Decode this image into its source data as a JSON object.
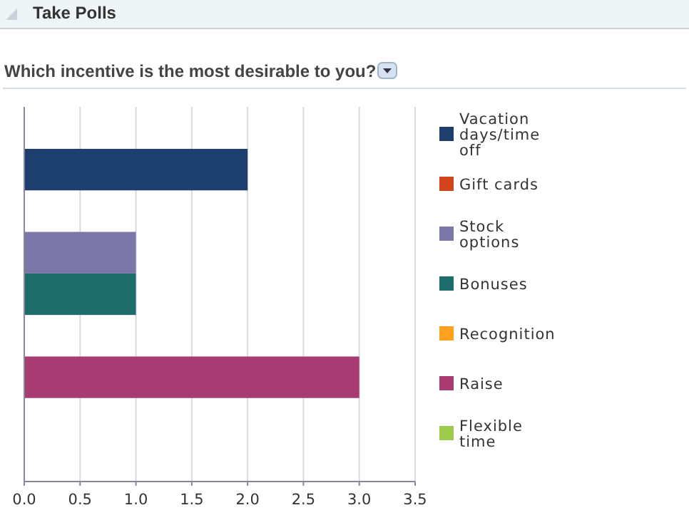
{
  "chart_data": {
    "type": "bar",
    "orientation": "horizontal",
    "title": "Take Polls",
    "subtitle": "Which incentive is the most desirable to you?",
    "categories": [
      null
    ],
    "series": [
      {
        "name": "Vacation days/time off",
        "color": "#1c3f6e",
        "values": [
          2
        ]
      },
      {
        "name": "Gift cards",
        "color": "#d2441c",
        "values": [
          0
        ]
      },
      {
        "name": "Stock options",
        "color": "#7b77a8",
        "values": [
          1
        ]
      },
      {
        "name": "Bonuses",
        "color": "#1d6d6b",
        "values": [
          1
        ]
      },
      {
        "name": "Recognition",
        "color": "#ffa11c",
        "values": [
          0
        ]
      },
      {
        "name": "Raise",
        "color": "#a83c72",
        "values": [
          3
        ]
      },
      {
        "name": "Flexible time",
        "color": "#9ccc4a",
        "values": [
          0
        ]
      }
    ],
    "xlim": [
      0,
      3.5
    ],
    "xticks": [
      {
        "value": 0,
        "label": "0.0"
      },
      {
        "value": 0.5,
        "label": "0.5"
      },
      {
        "value": 1,
        "label": "1.0"
      },
      {
        "value": 1.5,
        "label": "1.5"
      },
      {
        "value": 2,
        "label": "2.0"
      },
      {
        "value": 2.5,
        "label": "2.5"
      },
      {
        "value": 3,
        "label": "3.0"
      },
      {
        "value": 3.5,
        "label": "3.5"
      }
    ],
    "grid": "x",
    "legend": "right"
  }
}
